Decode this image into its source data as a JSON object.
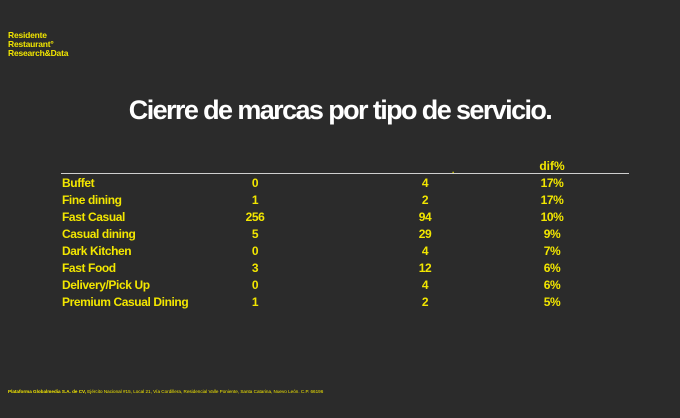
{
  "brand": {
    "line1": "Residente",
    "line2": "Restaurant°",
    "line3": "Research&Data"
  },
  "title": "Cierre de marcas por tipo de servicio.",
  "table": {
    "header_dif": "dif%",
    "header_mark": ".",
    "rows": [
      {
        "label": "Buffet",
        "a": "0",
        "b": "4",
        "dif": "17%"
      },
      {
        "label": "Fine dining",
        "a": "1",
        "b": "2",
        "dif": "17%"
      },
      {
        "label": "Fast Casual",
        "a": "256",
        "b": "94",
        "dif": "10%"
      },
      {
        "label": "Casual dining",
        "a": "5",
        "b": "29",
        "dif": "9%"
      },
      {
        "label": "Dark Kitchen",
        "a": "0",
        "b": "4",
        "dif": "7%"
      },
      {
        "label": "Fast Food",
        "a": "3",
        "b": "12",
        "dif": "6%"
      },
      {
        "label": "Delivery/Pick Up",
        "a": "0",
        "b": "4",
        "dif": "6%"
      },
      {
        "label": "Premium Casual Dining",
        "a": "1",
        "b": "2",
        "dif": "5%"
      }
    ]
  },
  "footer": {
    "company": "Plataforma Globalmedia S.A. de CV,",
    "address": "Ejército Nacional #15, Local 21, Vía Cordillera, Residencial Valle Poniente, Santa Catarina, Nuevo León. C.P. 66196"
  }
}
